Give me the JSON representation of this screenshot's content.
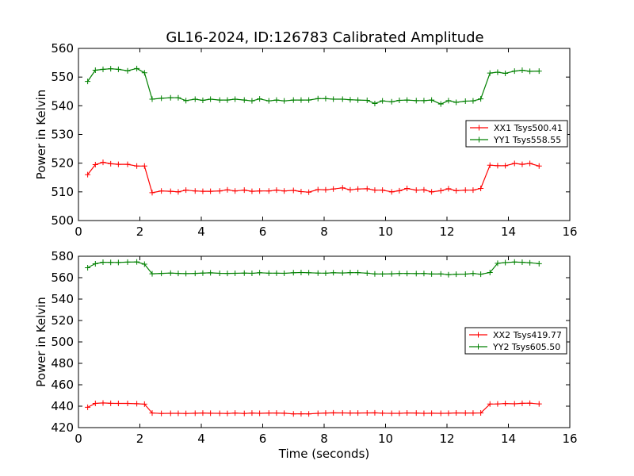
{
  "chart_data": [
    {
      "type": "line",
      "title": "GL16-2024, ID:126783 Calibrated Amplitude",
      "xlabel": "",
      "ylabel": "Power in Kelvin",
      "xlim": [
        0,
        16
      ],
      "ylim": [
        500,
        560
      ],
      "xticks": [
        "0",
        "2",
        "4",
        "6",
        "8",
        "10",
        "12",
        "14",
        "16"
      ],
      "yticks": [
        "500",
        "510",
        "520",
        "530",
        "540",
        "550",
        "560"
      ],
      "legend_position": "center-right",
      "x": [
        0.3,
        0.55,
        0.8,
        1.05,
        1.3,
        1.6,
        1.9,
        2.15,
        2.4,
        2.7,
        3.0,
        3.25,
        3.5,
        3.8,
        4.05,
        4.3,
        4.6,
        4.85,
        5.1,
        5.4,
        5.65,
        5.9,
        6.2,
        6.45,
        6.7,
        7.0,
        7.25,
        7.5,
        7.8,
        8.05,
        8.3,
        8.6,
        8.85,
        9.1,
        9.4,
        9.65,
        9.9,
        10.2,
        10.45,
        10.7,
        11.0,
        11.25,
        11.5,
        11.8,
        12.05,
        12.3,
        12.6,
        12.85,
        13.1,
        13.4,
        13.65,
        13.9,
        14.2,
        14.45,
        14.7,
        15.0
      ],
      "series": [
        {
          "name": "XX1 Tsys500.41",
          "color": "#ff0000",
          "values": [
            516,
            519.5,
            520.3,
            519.8,
            519.6,
            519.6,
            519,
            519,
            509.7,
            510.3,
            510.2,
            510,
            510.6,
            510.3,
            510.2,
            510.2,
            510.3,
            510.7,
            510.3,
            510.6,
            510.2,
            510.3,
            510.3,
            510.6,
            510.3,
            510.5,
            510.1,
            509.9,
            510.8,
            510.7,
            511,
            511.4,
            510.7,
            511,
            511.1,
            510.6,
            510.6,
            510,
            510.4,
            511.2,
            510.6,
            510.7,
            510,
            510.4,
            511.1,
            510.4,
            510.6,
            510.6,
            511.2,
            519.3,
            519.1,
            519.1,
            519.9,
            519.6,
            519.9,
            519
          ]
        },
        {
          "name": "YY1 Tsys558.55",
          "color": "#008000",
          "values": [
            548.5,
            552.4,
            552.7,
            552.9,
            552.7,
            552.2,
            553,
            551.5,
            542.3,
            542.6,
            542.8,
            542.8,
            541.8,
            542.3,
            541.9,
            542.3,
            542,
            542,
            542.3,
            542,
            541.7,
            542.4,
            541.7,
            542,
            541.7,
            542,
            542,
            542,
            542.5,
            542.5,
            542.3,
            542.3,
            542.1,
            542,
            541.9,
            540.8,
            541.7,
            541.4,
            541.9,
            542,
            541.8,
            541.8,
            542,
            540.6,
            541.8,
            541.2,
            541.6,
            541.7,
            542.4,
            551.4,
            551.7,
            551.3,
            552.1,
            552.4,
            552,
            552.1
          ]
        }
      ]
    },
    {
      "type": "line",
      "title": "",
      "xlabel": "Time (seconds)",
      "ylabel": "Power in Kelvin",
      "xlim": [
        0,
        16
      ],
      "ylim": [
        420,
        580
      ],
      "xticks": [
        "0",
        "2",
        "4",
        "6",
        "8",
        "10",
        "12",
        "14",
        "16"
      ],
      "yticks": [
        "420",
        "440",
        "460",
        "480",
        "500",
        "520",
        "540",
        "560",
        "580"
      ],
      "legend_position": "center-right",
      "x": [
        0.3,
        0.55,
        0.8,
        1.05,
        1.3,
        1.6,
        1.9,
        2.15,
        2.4,
        2.7,
        3.0,
        3.25,
        3.5,
        3.8,
        4.05,
        4.3,
        4.6,
        4.85,
        5.1,
        5.4,
        5.65,
        5.9,
        6.2,
        6.45,
        6.7,
        7.0,
        7.25,
        7.5,
        7.8,
        8.05,
        8.3,
        8.6,
        8.85,
        9.1,
        9.4,
        9.65,
        9.9,
        10.2,
        10.45,
        10.7,
        11.0,
        11.25,
        11.5,
        11.8,
        12.05,
        12.3,
        12.6,
        12.85,
        13.1,
        13.4,
        13.65,
        13.9,
        14.2,
        14.45,
        14.7,
        15.0
      ],
      "series": [
        {
          "name": "XX2 Tsys419.77",
          "color": "#ff0000",
          "values": [
            439,
            442.6,
            443,
            442.7,
            442.6,
            442.6,
            442.3,
            441.9,
            433.6,
            433.2,
            433.3,
            433.3,
            433.2,
            433.4,
            433.6,
            433.4,
            433.3,
            433.2,
            433.6,
            433.2,
            433.6,
            433.3,
            433.6,
            433.6,
            433.4,
            432.8,
            432.9,
            432.8,
            433.3,
            433.6,
            433.8,
            433.7,
            433.6,
            433.6,
            433.7,
            433.8,
            433.5,
            433.3,
            433.3,
            433.7,
            433.6,
            433.3,
            433.4,
            433.3,
            433.4,
            433.7,
            433.6,
            433.6,
            433.7,
            442,
            442.1,
            442.5,
            442.2,
            442.7,
            442.8,
            442.1
          ]
        },
        {
          "name": "YY2 Tsys605.50",
          "color": "#008000",
          "values": [
            569.3,
            573,
            574.4,
            574.3,
            574.2,
            574.5,
            574.7,
            572.6,
            563.6,
            564,
            564.3,
            564,
            563.8,
            564,
            564.3,
            564.5,
            564.1,
            564,
            564.1,
            564.3,
            564.1,
            564.6,
            564.2,
            564.2,
            564.1,
            564.6,
            564.8,
            564.6,
            564.3,
            564.2,
            564.6,
            564.4,
            564.7,
            564.7,
            564.2,
            563.5,
            563.4,
            563.6,
            563.9,
            563.9,
            563.8,
            563.9,
            563.4,
            563.5,
            562.8,
            563.2,
            563.3,
            563.9,
            563.2,
            564.8,
            573.4,
            574.1,
            574.6,
            574.4,
            573.9,
            573.1
          ]
        }
      ]
    }
  ]
}
